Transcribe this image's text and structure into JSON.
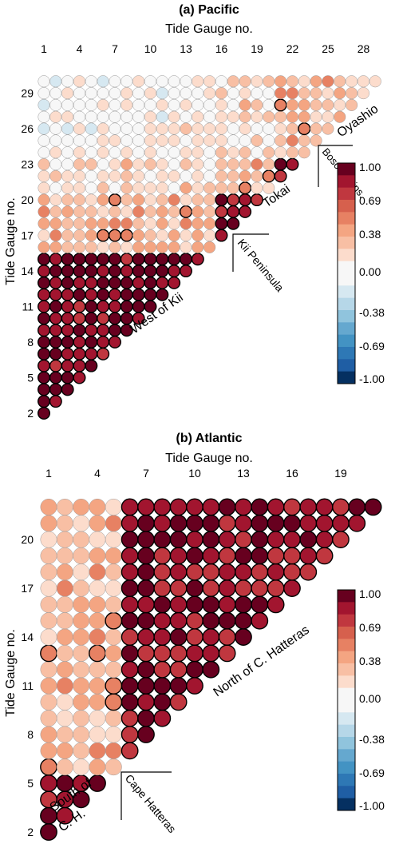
{
  "palette": {
    "neg": [
      "#f7f7f7",
      "#d6e8f1",
      "#b6d7e8",
      "#90c4dd",
      "#65a8cf",
      "#4393c3",
      "#2e78b5",
      "#1f5ea4",
      "#053061"
    ],
    "pos": [
      "#f7f7f7",
      "#fcdccc",
      "#f8bfa4",
      "#f4a582",
      "#e78163",
      "#d6604d",
      "#c0373f",
      "#a2152f",
      "#67001f"
    ]
  },
  "chart_data": [
    {
      "type": "heatmap",
      "title": "(a) Pacific",
      "xlabel": "Tide Gauge no.",
      "ylabel": "Tide Gauge no.",
      "x_ticks": [
        "1",
        "4",
        "7",
        "10",
        "13",
        "16",
        "19",
        "22",
        "25",
        "28"
      ],
      "y_ticks": [
        "2",
        "5",
        "8",
        "11",
        "14",
        "17",
        "20",
        "23",
        "26",
        "29"
      ],
      "colorbar": {
        "ticks": [
          "1.00",
          "0.69",
          "0.38",
          "0.00",
          "-0.38",
          "-0.69",
          "-1.00"
        ],
        "range": [
          -1,
          1
        ]
      },
      "n_gauges": 30,
      "groups": [
        {
          "start": 1,
          "end": 15,
          "base": 0.93
        },
        {
          "start": 16,
          "end": 20,
          "base": 0.82
        },
        {
          "start": 21,
          "end": 23,
          "base": 0.82
        },
        {
          "start": 24,
          "end": 30,
          "base": 0.3
        }
      ],
      "annotations": [
        "West of Kii",
        "Kii Peninsula",
        "Tokai",
        "Boso Penins.",
        "Oyashio"
      ]
    },
    {
      "type": "heatmap",
      "title": "(b) Atlantic",
      "xlabel": "Tide Gauge no.",
      "ylabel": "Tide Gauge no.",
      "x_ticks": [
        "1",
        "4",
        "7",
        "10",
        "13",
        "16",
        "19"
      ],
      "y_ticks": [
        "2",
        "5",
        "8",
        "11",
        "14",
        "17",
        "20"
      ],
      "colorbar": {
        "ticks": [
          "1.00",
          "0.69",
          "0.38",
          "0.00",
          "-0.38",
          "-0.69",
          "-1.00"
        ],
        "range": [
          -1,
          1
        ]
      },
      "n_gauges": 22,
      "groups": [
        {
          "start": 1,
          "end": 5,
          "base": 0.9
        },
        {
          "start": 6,
          "end": 22,
          "base": 0.85
        }
      ],
      "annotations": [
        "South of C. H.",
        "Cape Hatteras",
        "North of C. Hatteras"
      ]
    }
  ]
}
